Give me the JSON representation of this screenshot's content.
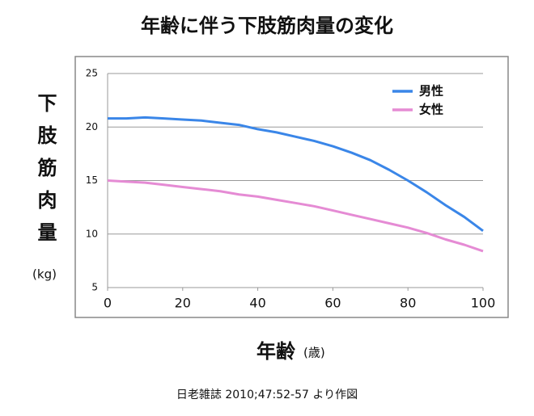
{
  "chart_data": {
    "type": "line",
    "title": "年齢に伴う下肢筋肉量の変化",
    "y_label": "下肢筋肉量",
    "y_label_unit": "(kg)",
    "x_label": "年齢",
    "x_label_unit": "(歳)",
    "source": "日老雑誌  2010;47:52-57 より作図",
    "x": [
      0,
      5,
      10,
      15,
      20,
      25,
      30,
      35,
      40,
      45,
      50,
      55,
      60,
      65,
      70,
      75,
      80,
      85,
      90,
      95,
      100
    ],
    "series": [
      {
        "name": "男性",
        "color": "#3a86e8",
        "values": [
          20.8,
          20.8,
          20.9,
          20.8,
          20.7,
          20.6,
          20.4,
          20.2,
          19.8,
          19.5,
          19.1,
          18.7,
          18.2,
          17.6,
          16.9,
          16.0,
          15.0,
          13.9,
          12.7,
          11.6,
          10.3
        ]
      },
      {
        "name": "女性",
        "color": "#e58bd4",
        "values": [
          15.0,
          14.9,
          14.8,
          14.6,
          14.4,
          14.2,
          14.0,
          13.7,
          13.5,
          13.2,
          12.9,
          12.6,
          12.2,
          11.8,
          11.4,
          11.0,
          10.6,
          10.1,
          9.5,
          9.0,
          8.4
        ]
      }
    ],
    "xlim": [
      0,
      100
    ],
    "xticks": [
      0,
      20,
      40,
      60,
      80,
      100
    ],
    "ylim": [
      5,
      25
    ],
    "yticks": [
      5,
      10,
      15,
      20,
      25
    ],
    "grid": true,
    "legend": "top-right"
  }
}
